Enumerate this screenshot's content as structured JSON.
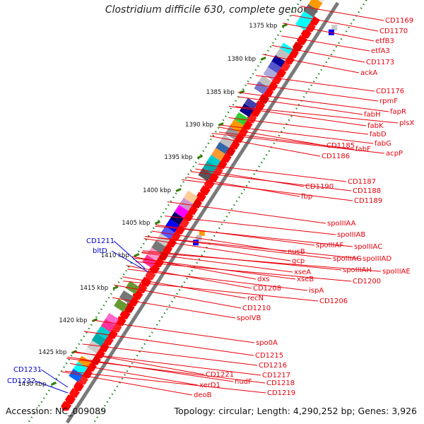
{
  "title": "Clostridium difficile 630, complete genome",
  "accession_text": "Accession: NC_009089",
  "summary_text": "Topology: circular; Length: 4,290,252 bp; Genes: 3,926",
  "colors": {
    "label_red": "#e8000b",
    "label_blue": "#0000cc",
    "backbone": "#7a7a7a",
    "tick_green": "#1a8a1a",
    "tick_dash": "#2f7f00"
  },
  "ticks": [
    "1375 kbp",
    "1380 kbp",
    "1385 kbp",
    "1390 kbp",
    "1395 kbp",
    "1400 kbp",
    "1405 kbp",
    "1410 kbp",
    "1415 kbp",
    "1420 kbp",
    "1425 kbp",
    "1430 kbp"
  ],
  "labels_right": [
    "CD1169",
    "CD1170",
    "etfB3",
    "etfA3",
    "CD1173",
    "ackA",
    "CD1176",
    "rpmF",
    "fapR",
    "plsX",
    "fabH",
    "fabK",
    "fabD",
    "fabG",
    "acpP",
    "fabF",
    "CD1185",
    "CD1186",
    "CD1187",
    "CD1188",
    "CD1189",
    "CD1190",
    "fbp",
    "spoIIIAA",
    "spoIIIAB",
    "spoIIIAC",
    "spoIIIAD",
    "spoIIIAE",
    "spoIIIAF",
    "spoIIIAG",
    "spoIIIAH",
    "nusB",
    "gcp",
    "xseA",
    "xseB",
    "dxs",
    "CD1200",
    "ispA",
    "CD1208",
    "CD1206",
    "recN",
    "CD1210",
    "spoIVB",
    "spo0A",
    "CD1215",
    "CD1216",
    "CD1217",
    "CD1218",
    "CD1219",
    "CD1221",
    "nudF",
    "xerD1",
    "deoB"
  ],
  "labels_left": [
    "CD1211",
    "bltD",
    "CD1231",
    "CD1232"
  ]
}
